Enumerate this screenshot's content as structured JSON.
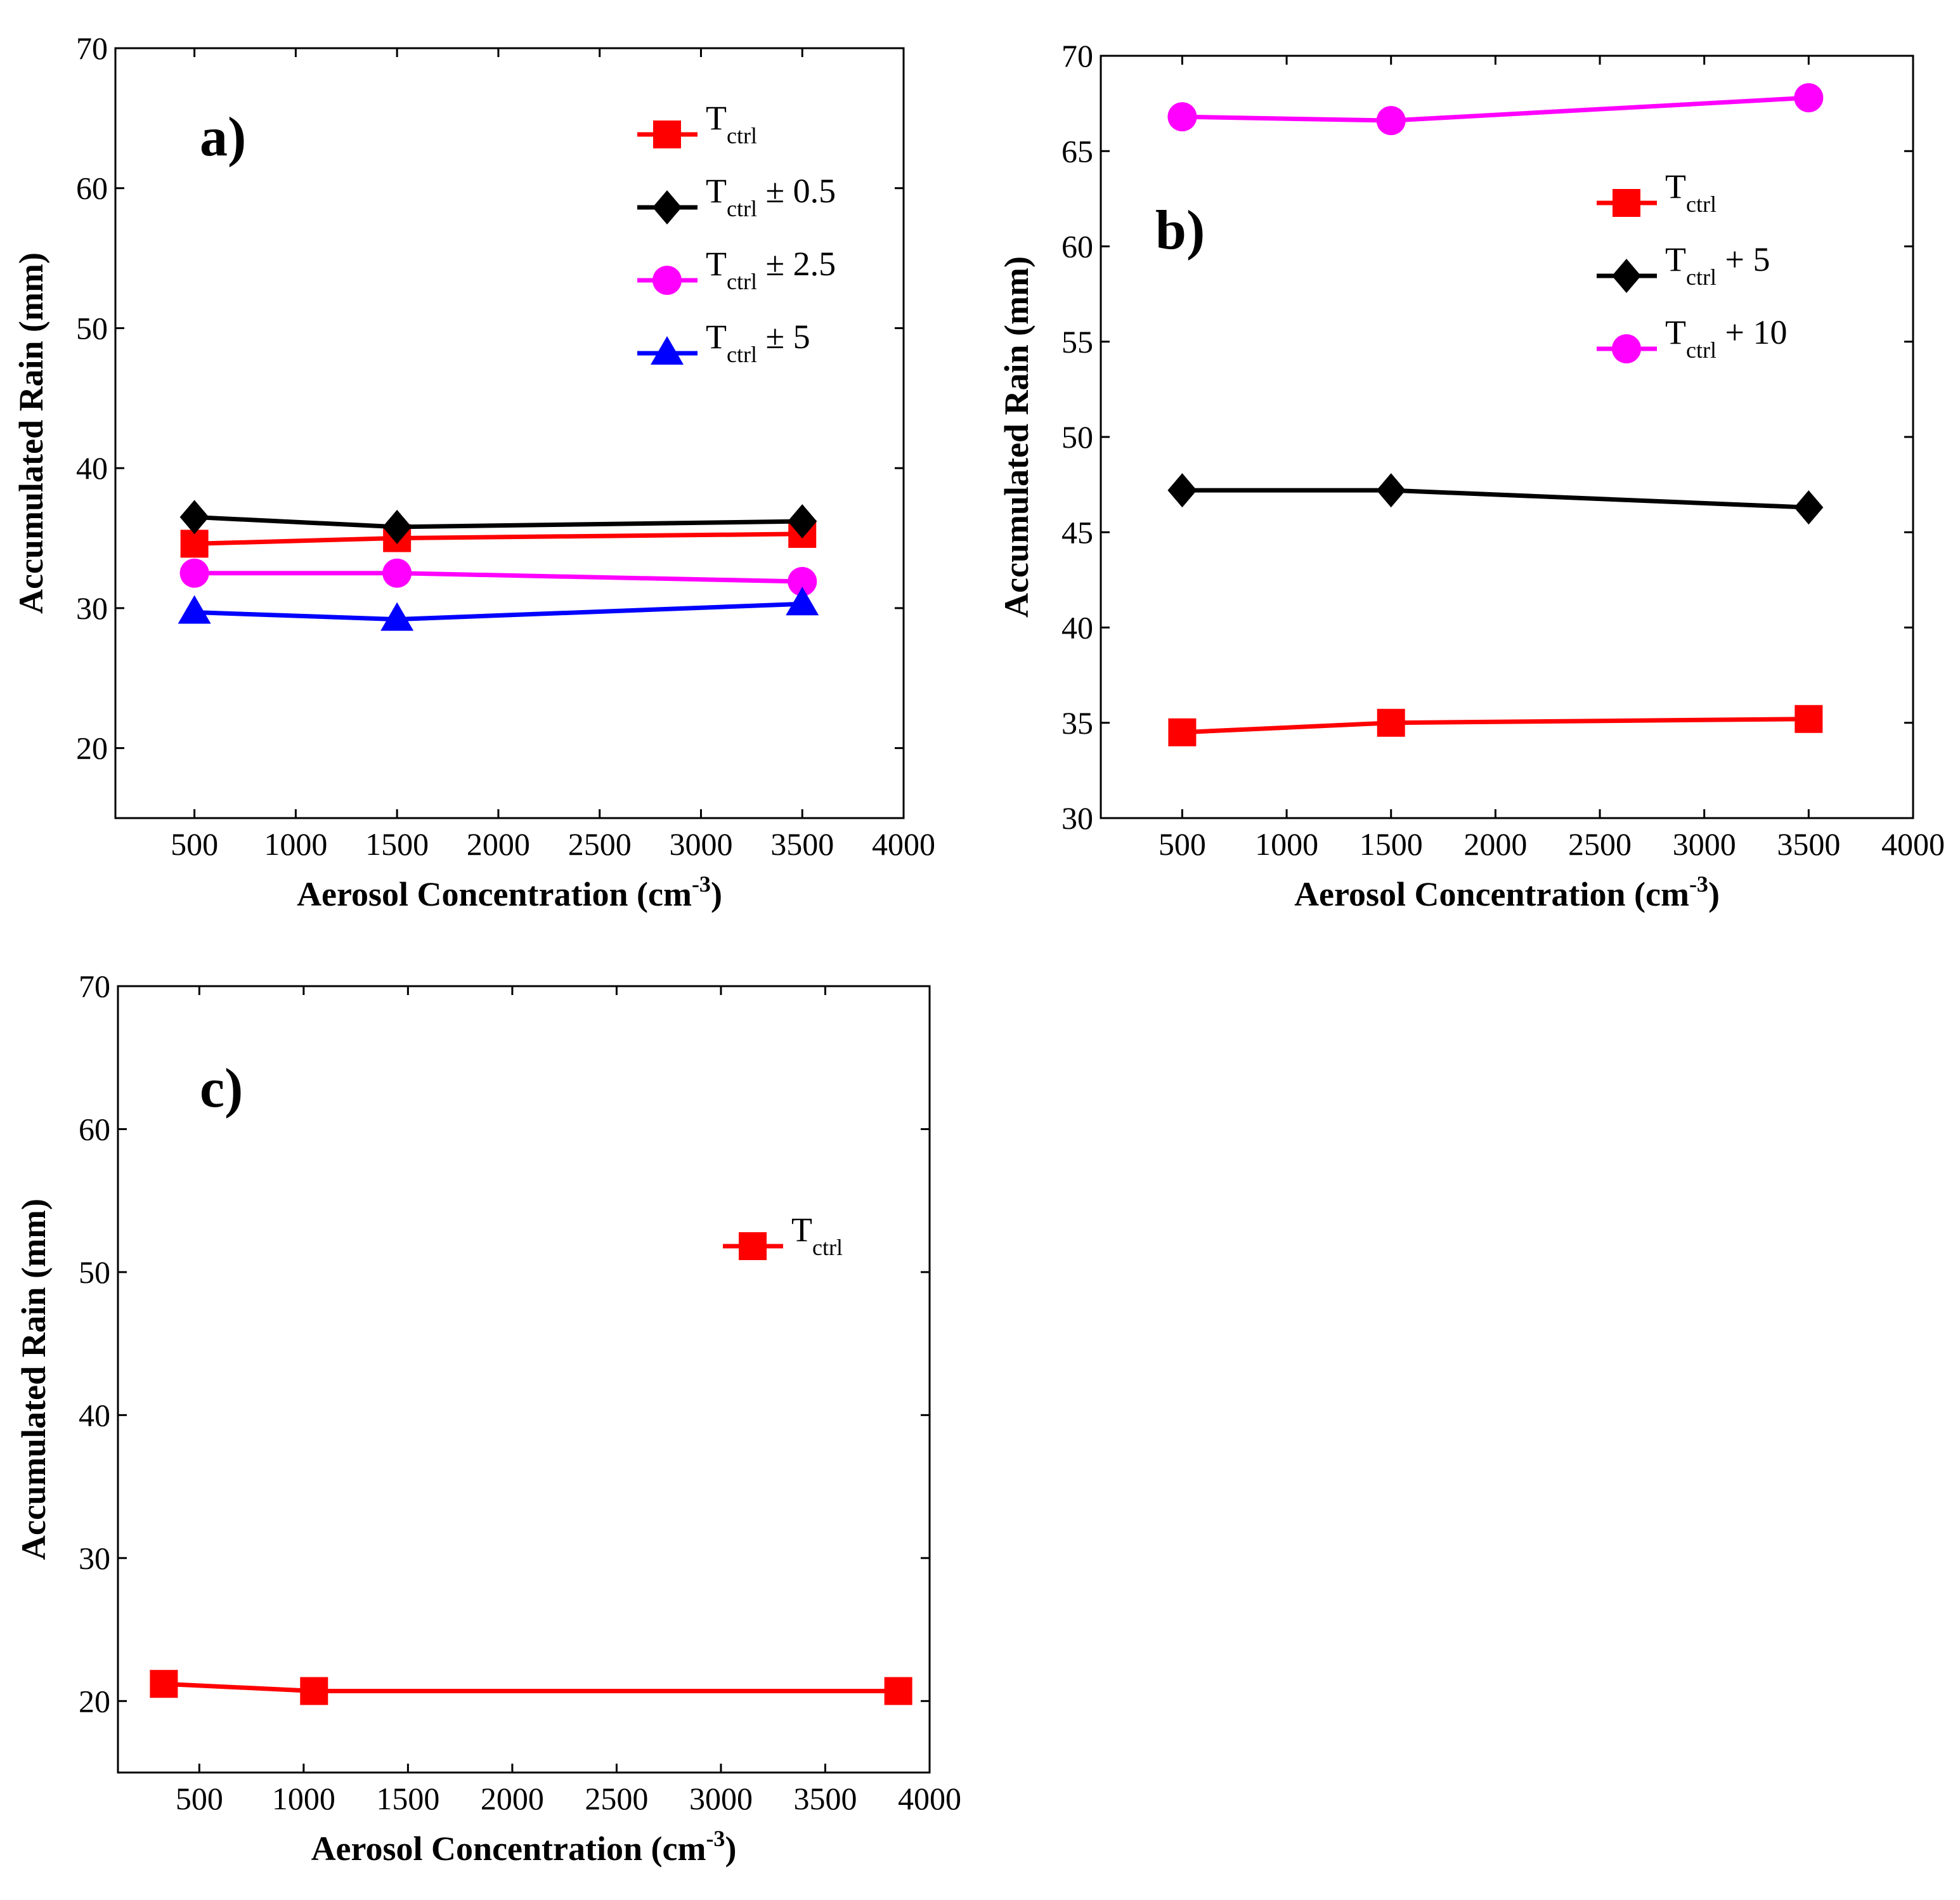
{
  "chart_data": [
    {
      "id": "a",
      "type": "line",
      "panel_label": "a)",
      "xlabel": "Aerosol Concentration (cm",
      "xlabel_superscript": "-3",
      "xlabel_close": ")",
      "ylabel": "Accumulated Rain (mm)",
      "xlim": [
        110,
        4000
      ],
      "ylim": [
        15,
        70
      ],
      "xticks": [
        500,
        1000,
        1500,
        2000,
        2500,
        3000,
        3500,
        4000
      ],
      "yticks": [
        20,
        30,
        40,
        50,
        60,
        70
      ],
      "legend_position": "top-right",
      "series": [
        {
          "legend_main": "T",
          "legend_sub": "ctrl",
          "legend_suffix": "",
          "color": "#ff0000",
          "marker": "square",
          "x": [
            500,
            1500,
            3500
          ],
          "y": [
            34.6,
            35.0,
            35.3
          ]
        },
        {
          "legend_main": "T",
          "legend_sub": "ctrl",
          "legend_suffix": " ± 0.5",
          "color": "#000000",
          "marker": "diamond",
          "x": [
            500,
            1500,
            3500
          ],
          "y": [
            36.5,
            35.8,
            36.2
          ]
        },
        {
          "legend_main": "T",
          "legend_sub": "ctrl",
          "legend_suffix": " ± 2.5",
          "color": "#ff00ff",
          "marker": "circle",
          "x": [
            500,
            1500,
            3500
          ],
          "y": [
            32.5,
            32.5,
            31.9
          ]
        },
        {
          "legend_main": "T",
          "legend_sub": "ctrl",
          "legend_suffix": " ± 5",
          "color": "#0000ff",
          "marker": "triangle",
          "x": [
            500,
            1500,
            3500
          ],
          "y": [
            29.7,
            29.2,
            30.3
          ]
        }
      ]
    },
    {
      "id": "b",
      "type": "line",
      "panel_label": "b)",
      "xlabel": "Aerosol Concentration (cm",
      "xlabel_superscript": "-3",
      "xlabel_close": ")",
      "ylabel": "Accumulated Rain (mm)",
      "xlim": [
        110,
        4000
      ],
      "ylim": [
        30,
        70
      ],
      "xticks": [
        500,
        1000,
        1500,
        2000,
        2500,
        3000,
        3500,
        4000
      ],
      "yticks": [
        30,
        35,
        40,
        45,
        50,
        55,
        60,
        65,
        70
      ],
      "legend_position": "top-right",
      "series": [
        {
          "legend_main": "T",
          "legend_sub": "ctrl",
          "legend_suffix": "",
          "color": "#ff0000",
          "marker": "square",
          "x": [
            500,
            1500,
            3500
          ],
          "y": [
            34.5,
            35.0,
            35.2
          ]
        },
        {
          "legend_main": "T",
          "legend_sub": "ctrl",
          "legend_suffix": " + 5",
          "color": "#000000",
          "marker": "diamond",
          "x": [
            500,
            1500,
            3500
          ],
          "y": [
            47.2,
            47.2,
            46.3
          ]
        },
        {
          "legend_main": "T",
          "legend_sub": "ctrl",
          "legend_suffix": " + 10",
          "color": "#ff00ff",
          "marker": "circle",
          "x": [
            500,
            1500,
            3500
          ],
          "y": [
            66.8,
            66.6,
            67.8
          ]
        }
      ]
    },
    {
      "id": "c",
      "type": "line",
      "panel_label": "c)",
      "xlabel": "Aerosol Concentration (cm",
      "xlabel_superscript": "-3",
      "xlabel_close": ")",
      "ylabel": "Accumulated Rain (mm)",
      "xlim": [
        110,
        4000
      ],
      "ylim": [
        15,
        70
      ],
      "xticks": [
        500,
        1000,
        1500,
        2000,
        2500,
        3000,
        3500,
        4000
      ],
      "yticks": [
        20,
        30,
        40,
        50,
        60,
        70
      ],
      "legend_position": "right",
      "series": [
        {
          "legend_main": "T",
          "legend_sub": "ctrl",
          "legend_suffix": "",
          "color": "#ff0000",
          "marker": "square",
          "x": [
            330,
            1050,
            3850
          ],
          "y": [
            21.2,
            20.7,
            20.7
          ]
        }
      ]
    }
  ]
}
